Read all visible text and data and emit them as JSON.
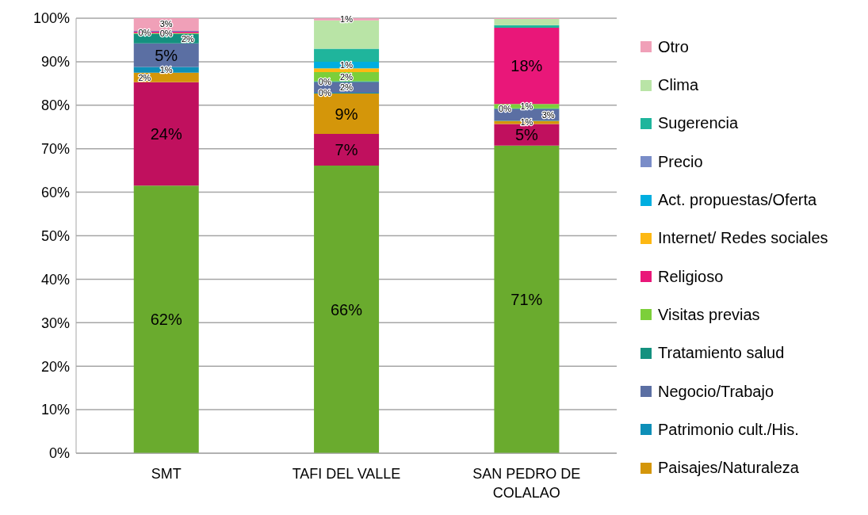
{
  "chart_data": {
    "type": "bar",
    "stacked": true,
    "categories": [
      "SMT",
      "TAFI DEL VALLE",
      "SAN PEDRO DE COLALAO"
    ],
    "ylim": [
      0,
      100
    ],
    "yticks": [
      {
        "value": 0,
        "label": "0%"
      },
      {
        "value": 10,
        "label": "10%"
      },
      {
        "value": 20,
        "label": "20%"
      },
      {
        "value": 30,
        "label": "30%"
      },
      {
        "value": 40,
        "label": "40%"
      },
      {
        "value": 50,
        "label": "50%"
      },
      {
        "value": 60,
        "label": "60%"
      },
      {
        "value": 70,
        "label": "70%"
      },
      {
        "value": 80,
        "label": "80%"
      },
      {
        "value": 90,
        "label": "90%"
      },
      {
        "value": 100,
        "label": "100%"
      }
    ],
    "grid": "y",
    "legend": "right",
    "series": [
      {
        "color": "#6aab2e",
        "values": [
          61.5,
          66.1,
          70.7
        ],
        "value_labels": [
          "62%",
          "66%",
          "71%"
        ]
      },
      {
        "color": "#c0105e",
        "values": [
          23.8,
          7.3,
          5.0
        ],
        "value_labels": [
          "24%",
          "7%",
          "5%"
        ]
      },
      {
        "name": "Paisajes/Naturaleza",
        "color": "#d4960a",
        "values": [
          2.2,
          9.3,
          0.7
        ],
        "value_labels": [
          "2%",
          "9%",
          "1%"
        ]
      },
      {
        "name": "Patrimonio cult./His.",
        "color": "#0e8fb8",
        "values": [
          1.3,
          0.2,
          0.1
        ],
        "value_labels": [
          "1%",
          "0%",
          null
        ]
      },
      {
        "name": "Negocio/Trabajo",
        "color": "#5b6fa3",
        "values": [
          5.4,
          2.4,
          2.6
        ],
        "value_labels": [
          "5%",
          "2%",
          "3%"
        ]
      },
      {
        "name": "Tratamiento salud",
        "color": "#14917f",
        "values": [
          2.2,
          0.2,
          0.2
        ],
        "value_labels": [
          "2%",
          "0%",
          "0%"
        ]
      },
      {
        "name": "Visitas previas",
        "color": "#7ccf3a",
        "values": [
          0.2,
          2.1,
          1.0
        ],
        "value_labels": [
          "0%",
          "2%",
          "1%"
        ]
      },
      {
        "name": "Religioso",
        "color": "#e91779",
        "values": [
          0.3,
          0,
          17.5
        ],
        "value_labels": [
          "0%",
          null,
          "18%"
        ]
      },
      {
        "name": "Internet/ Redes sociales",
        "color": "#fdb813",
        "values": [
          0,
          0.9,
          0
        ],
        "value_labels": [
          null,
          null,
          null
        ]
      },
      {
        "name": "Act. propuestas/Oferta",
        "color": "#00aee0",
        "values": [
          0,
          1.5,
          0
        ],
        "value_labels": [
          null,
          "1%",
          null
        ]
      },
      {
        "name": "Precio",
        "color": "#7a8dc8",
        "values": [
          0.2,
          0,
          0
        ],
        "value_labels": [
          null,
          null,
          null
        ]
      },
      {
        "name": "Sugerencia",
        "color": "#1fb59c",
        "values": [
          0,
          3.0,
          0.6
        ],
        "value_labels": [
          null,
          null,
          null
        ]
      },
      {
        "name": "Clima",
        "color": "#b9e4a6",
        "values": [
          0,
          6.5,
          1.4
        ],
        "value_labels": [
          null,
          null,
          null
        ]
      },
      {
        "name": "Otro",
        "color": "#f0a0b8",
        "values": [
          3.1,
          0.5,
          0.3
        ],
        "value_labels": [
          "3%",
          "1%",
          null
        ]
      }
    ]
  }
}
